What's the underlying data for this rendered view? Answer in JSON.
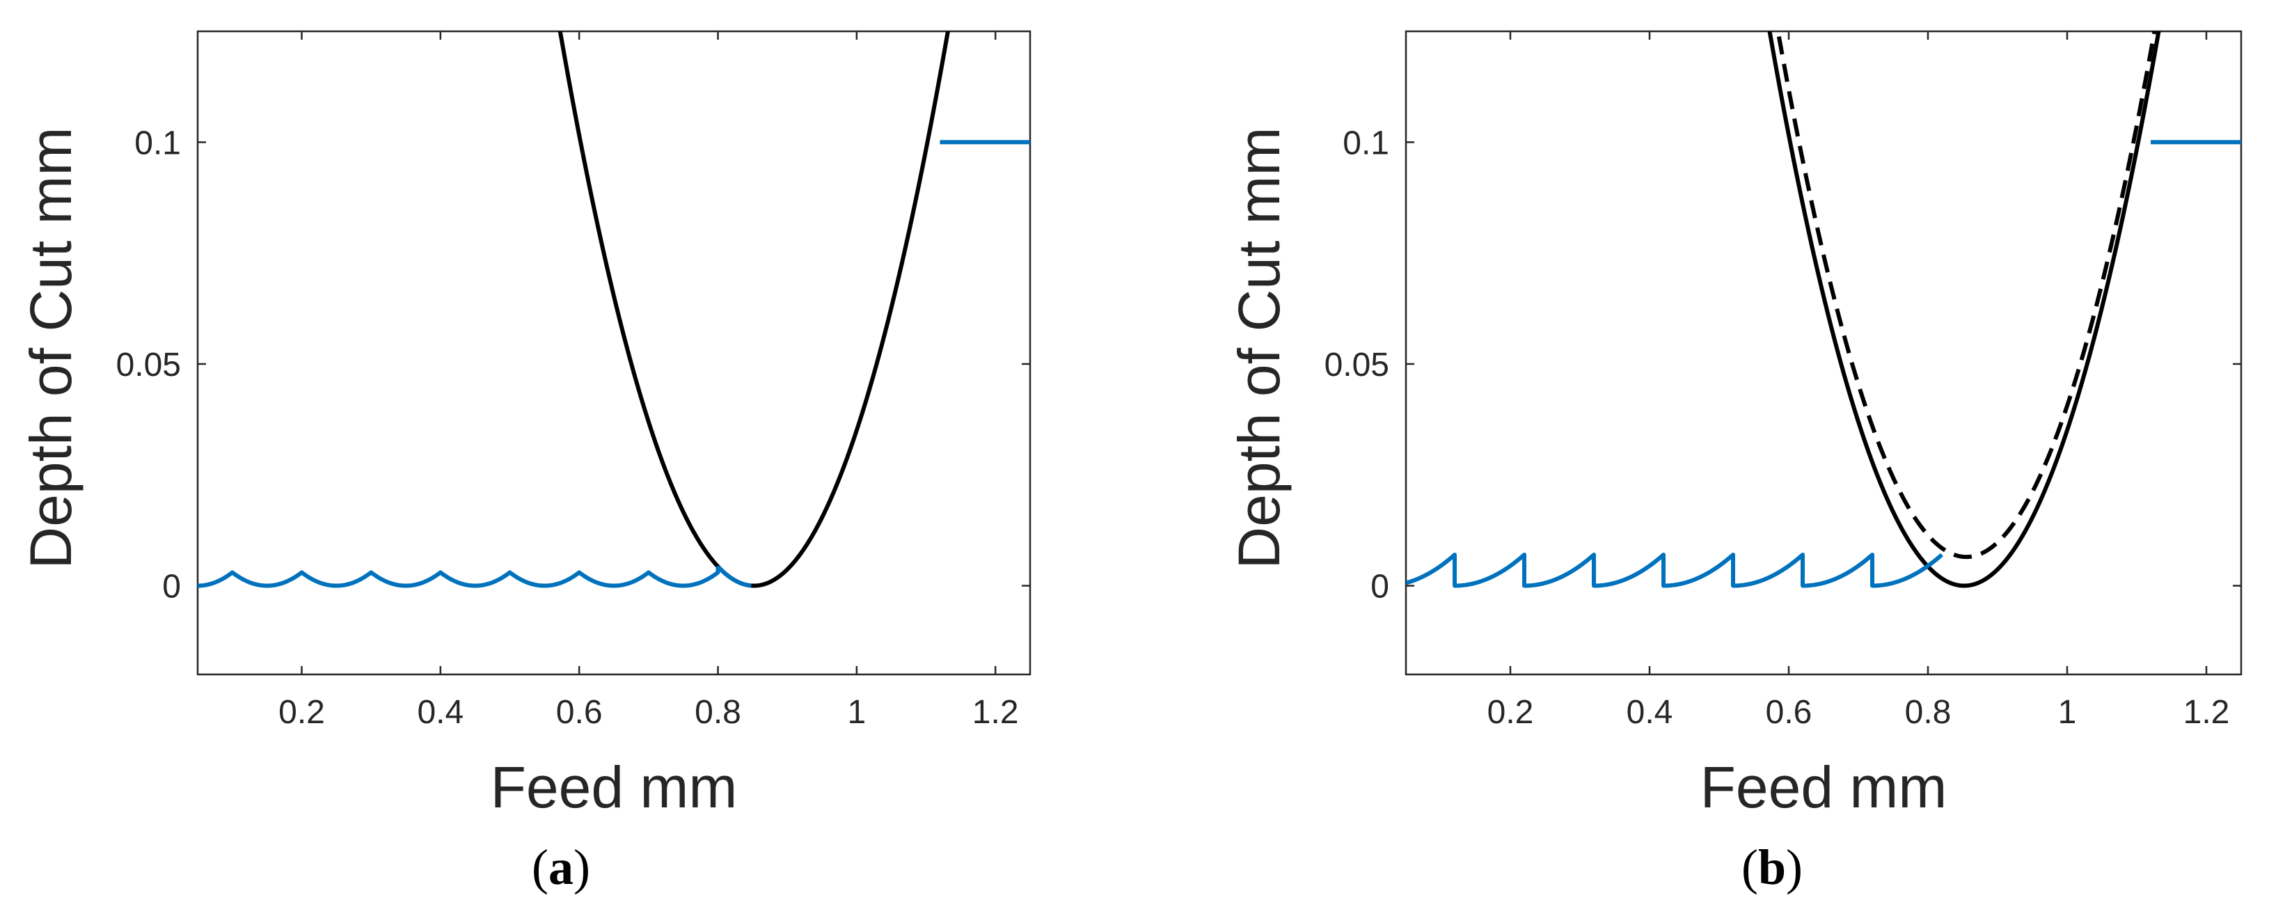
{
  "colors": {
    "tool_profile": "#000000",
    "surface_profile": "#0072BD",
    "axes": "#262626",
    "background": "#ffffff"
  },
  "chart_data": [
    {
      "type": "line",
      "panel_label": "a",
      "xlabel": "Feed mm",
      "ylabel": "Depth of Cut mm",
      "xlim": [
        0.05,
        1.25
      ],
      "ylim": [
        -0.02,
        0.125
      ],
      "xticks": [
        0.2,
        0.4,
        0.6,
        0.8,
        1,
        1.2
      ],
      "xtick_labels": [
        "0.2",
        "0.4",
        "0.6",
        "0.8",
        "1",
        "1.2"
      ],
      "yticks": [
        0,
        0.05,
        0.1
      ],
      "ytick_labels": [
        "0",
        "0.05",
        "0.1"
      ],
      "grid": false,
      "series": [
        {
          "style": "solid",
          "color": "#000000",
          "description_points": {
            "x": [
              0.56,
              0.6,
              0.65,
              0.7,
              0.75,
              0.8,
              0.85,
              0.9,
              0.95,
              1.0,
              1.05,
              1.1,
              1.14
            ],
            "y": [
              0.125,
              0.1,
              0.0727,
              0.0484,
              0.0284,
              0.0124,
              0.0,
              0.0121,
              0.0284,
              0.0484,
              0.0727,
              0.1,
              0.125
            ]
          }
        },
        {
          "style": "solid",
          "color": "#0072BD",
          "scallops": {
            "period": 0.1,
            "peak_height": 0.003,
            "first_peak": 0.1,
            "last_peak": 0.7,
            "x_start": 0.05,
            "x_end": 0.8
          },
          "flat_segment": {
            "x": [
              1.12,
              1.25
            ],
            "y": [
              0.1,
              0.1
            ]
          }
        }
      ]
    },
    {
      "type": "line",
      "panel_label": "b",
      "xlabel": "Feed mm",
      "ylabel": "Depth of Cut mm",
      "xlim": [
        0.05,
        1.25
      ],
      "ylim": [
        -0.02,
        0.125
      ],
      "xticks": [
        0.2,
        0.4,
        0.6,
        0.8,
        1,
        1.2
      ],
      "xtick_labels": [
        "0.2",
        "0.4",
        "0.6",
        "0.8",
        "1",
        "1.2"
      ],
      "yticks": [
        0,
        0.05,
        0.1
      ],
      "ytick_labels": [
        "0",
        "0.05",
        "0.1"
      ],
      "grid": false,
      "series": [
        {
          "style": "solid",
          "color": "#000000",
          "description_points": {
            "x": [
              0.56,
              0.6,
              0.65,
              0.7,
              0.75,
              0.8,
              0.85,
              0.9,
              0.95,
              1.0,
              1.05,
              1.1,
              1.14
            ],
            "y": [
              0.125,
              0.1,
              0.0727,
              0.0484,
              0.0284,
              0.0124,
              0.0,
              0.0121,
              0.0284,
              0.0484,
              0.0727,
              0.1,
              0.125
            ]
          }
        },
        {
          "style": "dashed",
          "color": "#000000",
          "description_points": {
            "x": [
              0.57,
              0.6,
              0.65,
              0.7,
              0.75,
              0.8,
              0.86,
              0.9,
              0.95,
              1.0,
              1.05,
              1.1,
              1.13
            ],
            "y": [
              0.125,
              0.11,
              0.08,
              0.053,
              0.032,
              0.016,
              0.007,
              0.013,
              0.027,
              0.047,
              0.073,
              0.105,
              0.125
            ]
          }
        },
        {
          "style": "solid",
          "color": "#0072BD",
          "sawtooth": {
            "period": 0.1,
            "peak_height": 0.007,
            "first_peak": 0.12,
            "last_peak": 0.72,
            "x_start": 0.05,
            "x_end": 0.82
          },
          "flat_segment": {
            "x": [
              1.12,
              1.25
            ],
            "y": [
              0.1,
              0.1
            ]
          }
        }
      ]
    }
  ]
}
